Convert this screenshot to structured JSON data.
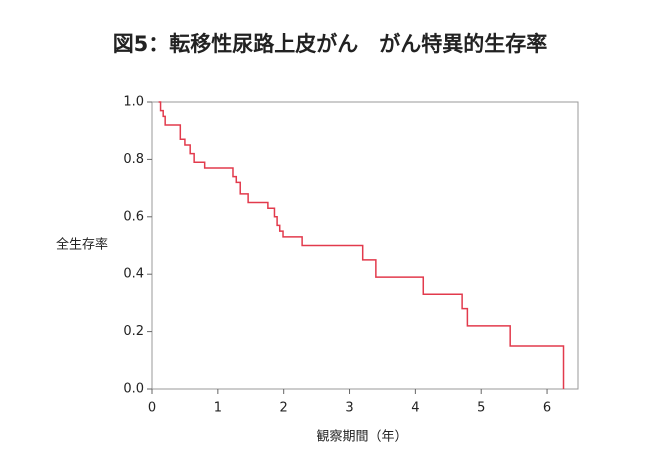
{
  "chart_data": {
    "type": "step",
    "title": "図5：転移性尿路上皮がん　がん特異的生存率",
    "x_label": "観察期間（年）",
    "y_label": "全生存率",
    "x": [
      0.1,
      0.13,
      0.17,
      0.2,
      0.43,
      0.5,
      0.58,
      0.64,
      0.8,
      1.23,
      1.28,
      1.34,
      1.46,
      1.76,
      1.86,
      1.9,
      1.94,
      1.99,
      2.28,
      3.2,
      3.4,
      4.12,
      4.71,
      4.79,
      5.44,
      6.25
    ],
    "values": [
      1.0,
      0.97,
      0.95,
      0.92,
      0.87,
      0.85,
      0.82,
      0.79,
      0.77,
      0.74,
      0.72,
      0.68,
      0.65,
      0.63,
      0.6,
      0.57,
      0.55,
      0.53,
      0.5,
      0.45,
      0.39,
      0.33,
      0.28,
      0.22,
      0.15,
      0.0
    ],
    "color": "#e23a4c",
    "xlim": [
      0,
      6.47
    ],
    "ylim": [
      0,
      1
    ],
    "xticks": [
      0,
      1,
      2,
      3,
      4,
      5,
      6
    ],
    "yticks": [
      {
        "value": 0,
        "label": "0.0"
      },
      0.2,
      0.4,
      0.6,
      0.8,
      {
        "value": 1,
        "label": "1.0"
      }
    ]
  }
}
